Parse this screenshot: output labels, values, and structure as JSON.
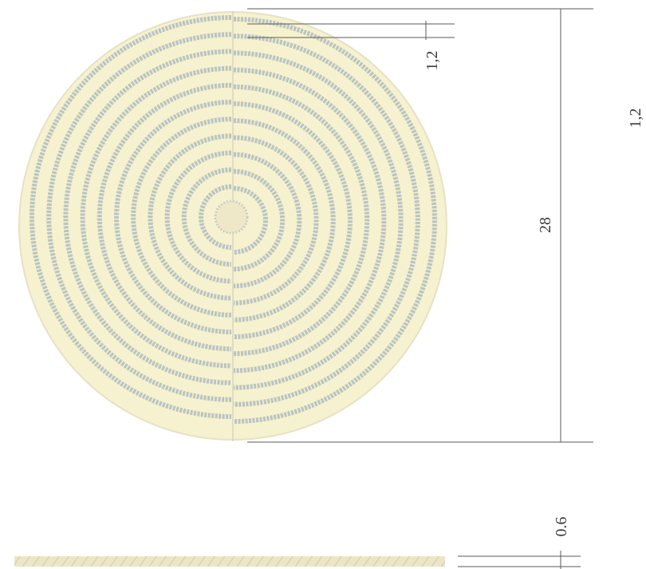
{
  "drawing": {
    "labels": {
      "spacing_top": "1,2",
      "spacing_side": "1,2",
      "diameter": "28",
      "thickness": "0.6"
    },
    "colors": {
      "disc_fill": "#f6f1cf",
      "ring_stripe": "#b8c4c2",
      "dimension_line": "#5a5a5a",
      "text": "#3a3a3a",
      "side_view_fill": "#ece6c4",
      "side_view_hatch": "#b9c3bd"
    },
    "ring_count": 11
  }
}
